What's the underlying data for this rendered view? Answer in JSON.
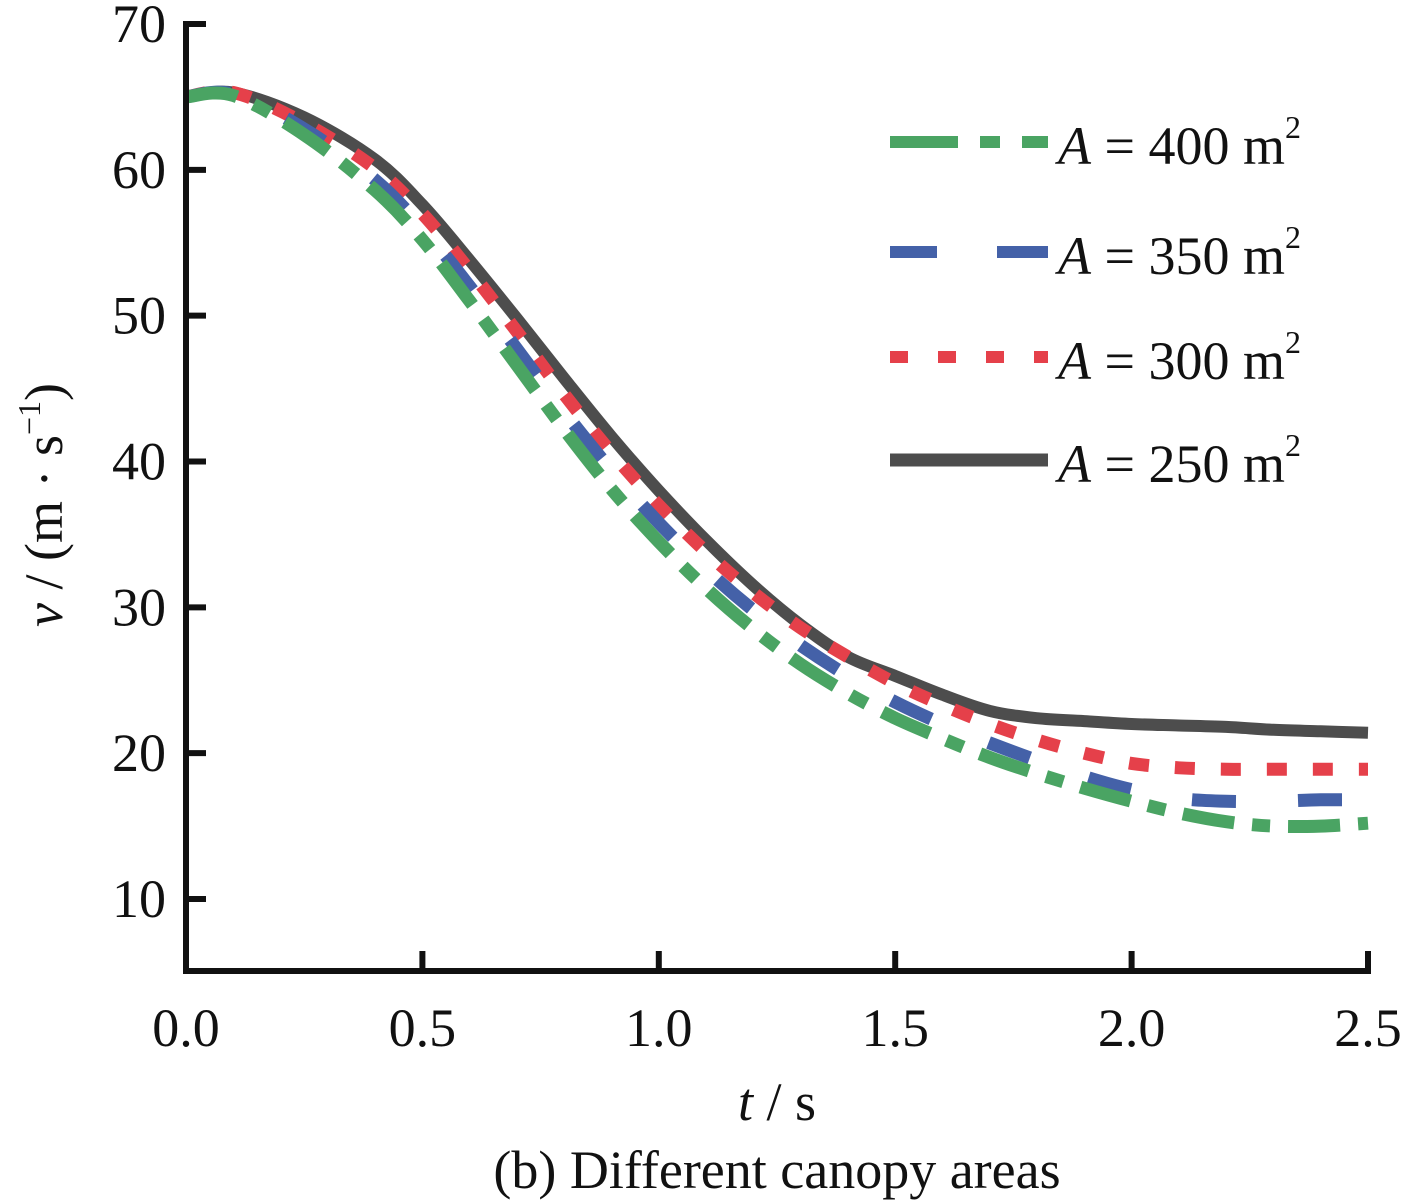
{
  "chart_data": {
    "type": "line",
    "title": "",
    "caption": "(b) Different canopy areas",
    "xlabel": {
      "var": "t",
      "unit": " / s"
    },
    "ylabel": {
      "var": "v",
      "unit_open": " / (m · s",
      "unit_exp": "−1",
      "unit_close": ")"
    },
    "xlim": [
      0,
      2.5
    ],
    "ylim": [
      5,
      70
    ],
    "xticks": [
      0.0,
      0.5,
      1.0,
      1.5,
      2.0,
      2.5
    ],
    "xtick_labels": [
      "0.0",
      "0.5",
      "1.0",
      "1.5",
      "2.0",
      "2.5"
    ],
    "yticks": [
      10,
      20,
      30,
      40,
      50,
      60,
      70
    ],
    "ytick_labels": [
      "10",
      "20",
      "30",
      "40",
      "50",
      "60",
      "70"
    ],
    "grid": false,
    "legend_position": "top-right",
    "x": [
      0.0,
      0.1,
      0.25,
      0.4,
      0.5,
      0.6,
      0.7,
      0.8,
      0.9,
      1.0,
      1.1,
      1.2,
      1.3,
      1.4,
      1.5,
      1.6,
      1.7,
      1.8,
      1.9,
      2.0,
      2.1,
      2.2,
      2.3,
      2.4,
      2.5
    ],
    "series": [
      {
        "name": "A = 400 m2",
        "legend_var": "A",
        "legend_eq": " = 400 m",
        "legend_exp": "2",
        "color": "#4aa463",
        "dash": "dash-dot",
        "values": [
          65.0,
          65.1,
          62.4,
          58.6,
          55.2,
          51.0,
          46.6,
          42.2,
          38.1,
          34.5,
          31.3,
          28.5,
          26.1,
          24.1,
          22.4,
          21.0,
          19.7,
          18.6,
          17.6,
          16.7,
          15.9,
          15.3,
          15.0,
          15.0,
          15.2
        ]
      },
      {
        "name": "A = 350 m2",
        "legend_var": "A",
        "legend_eq": " = 350 m",
        "legend_exp": "2",
        "color": "#4461a8",
        "dash": "long-dash",
        "values": [
          65.0,
          65.2,
          62.8,
          59.3,
          56.0,
          52.0,
          47.7,
          43.4,
          39.4,
          35.8,
          32.6,
          29.8,
          27.4,
          25.3,
          23.5,
          22.0,
          20.7,
          19.5,
          18.4,
          17.5,
          16.9,
          16.7,
          16.7,
          16.8,
          16.8
        ]
      },
      {
        "name": "A = 300 m2",
        "legend_var": "A",
        "legend_eq": " = 300 m",
        "legend_exp": "2",
        "color": "#e5404a",
        "dash": "short-dash",
        "values": [
          65.0,
          65.3,
          63.2,
          60.1,
          57.0,
          53.1,
          48.9,
          44.6,
          40.6,
          37.0,
          33.8,
          31.0,
          28.6,
          26.6,
          24.8,
          23.3,
          22.0,
          20.9,
          20.0,
          19.3,
          19.0,
          18.9,
          18.9,
          18.9,
          18.9
        ]
      },
      {
        "name": "A = 250 m2",
        "legend_var": "A",
        "legend_eq": " = 250 m",
        "legend_exp": "2",
        "color": "#4d4d4d",
        "dash": "solid",
        "values": [
          65.0,
          65.3,
          63.6,
          60.7,
          57.6,
          53.8,
          49.8,
          45.7,
          41.7,
          38.0,
          34.6,
          31.5,
          28.8,
          26.6,
          25.3,
          24.0,
          22.9,
          22.4,
          22.2,
          22.0,
          21.9,
          21.8,
          21.6,
          21.5,
          21.4
        ]
      }
    ]
  }
}
